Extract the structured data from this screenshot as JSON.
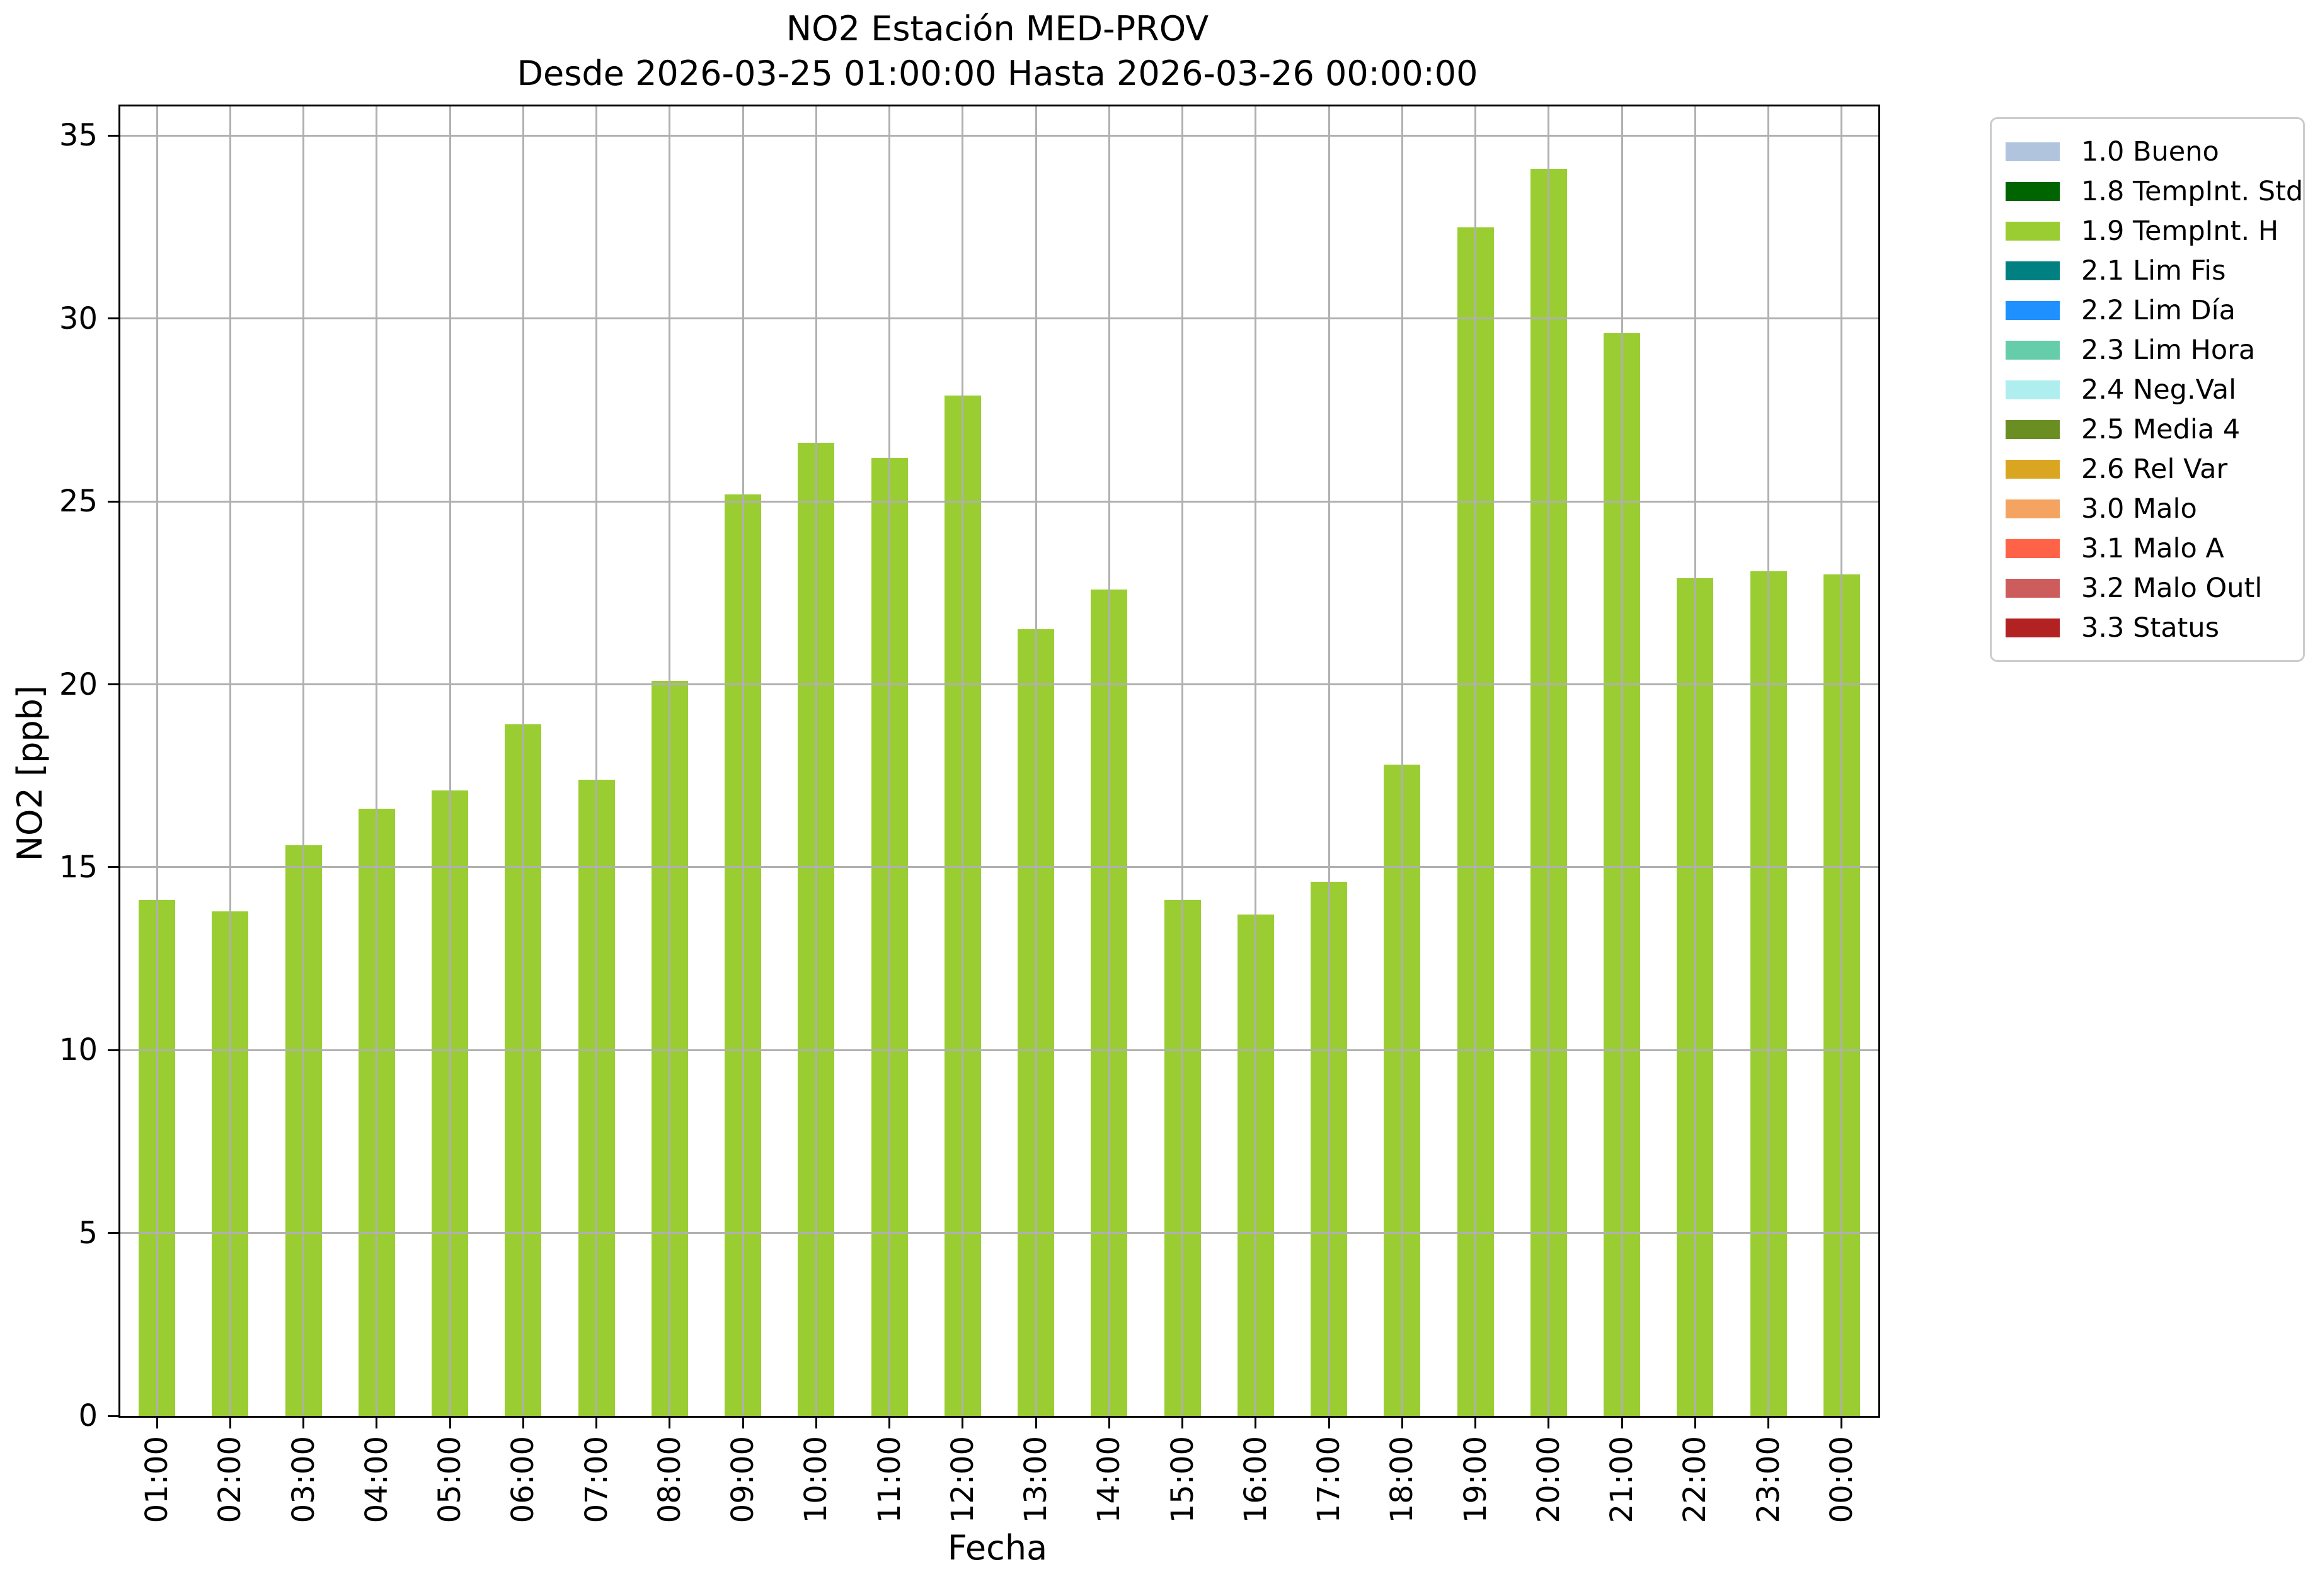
{
  "chart_data": {
    "type": "bar",
    "title": "NO2 Estación MED-PROV",
    "subtitle": "Desde 2026-03-25 01:00:00 Hasta 2026-03-26 00:00:00",
    "xlabel": "Fecha",
    "ylabel": "NO2 [ppb]",
    "categories": [
      "01:00",
      "02:00",
      "03:00",
      "04:00",
      "05:00",
      "06:00",
      "07:00",
      "08:00",
      "09:00",
      "10:00",
      "11:00",
      "12:00",
      "13:00",
      "14:00",
      "15:00",
      "16:00",
      "17:00",
      "18:00",
      "19:00",
      "20:00",
      "21:00",
      "22:00",
      "23:00",
      "00:00"
    ],
    "series": [
      {
        "name": "1.9 TempInt. H",
        "color": "#9acd32",
        "values": [
          14.1,
          13.8,
          15.6,
          16.6,
          17.1,
          18.9,
          17.4,
          20.1,
          25.2,
          26.6,
          26.2,
          27.9,
          21.5,
          22.6,
          14.1,
          13.7,
          14.6,
          17.8,
          32.5,
          34.1,
          29.6,
          22.9,
          23.1,
          23.0
        ]
      }
    ],
    "ylim": [
      0,
      35.8
    ],
    "yticks": [
      0,
      5,
      10,
      15,
      20,
      25,
      30,
      35
    ],
    "grid": true,
    "gridline_color": "#b0b0b0",
    "bar_width_fraction": 0.5,
    "legend_position": "upper right outside",
    "legend": [
      {
        "label": "1.0 Bueno",
        "color": "#b0c4de"
      },
      {
        "label": "1.8 TempInt. Std",
        "color": "#006400"
      },
      {
        "label": "1.9 TempInt. H",
        "color": "#9acd32"
      },
      {
        "label": "2.1 Lim Fis",
        "color": "#008080"
      },
      {
        "label": "2.2 Lim Día",
        "color": "#1e90ff"
      },
      {
        "label": "2.3 Lim Hora",
        "color": "#66cdaa"
      },
      {
        "label": "2.4 Neg.Val",
        "color": "#afeeee"
      },
      {
        "label": "2.5 Media 4",
        "color": "#6b8e23"
      },
      {
        "label": "2.6 Rel Var",
        "color": "#daa520"
      },
      {
        "label": "3.0 Malo",
        "color": "#f4a460"
      },
      {
        "label": "3.1 Malo A",
        "color": "#ff6347"
      },
      {
        "label": "3.2 Malo Outl",
        "color": "#cd5c5c"
      },
      {
        "label": "3.3 Status",
        "color": "#b22222"
      }
    ]
  }
}
